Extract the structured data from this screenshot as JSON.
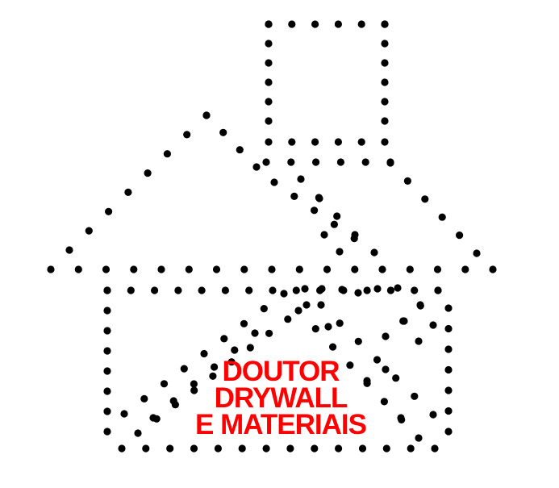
{
  "logo": {
    "text_lines": [
      "DOUTOR",
      "DRYWALL",
      "E MATERIAIS"
    ],
    "dot_color": "#000000",
    "text_color": "#ff0000",
    "background": "#ffffff",
    "motif": "dotted-house-with-chimney"
  }
}
